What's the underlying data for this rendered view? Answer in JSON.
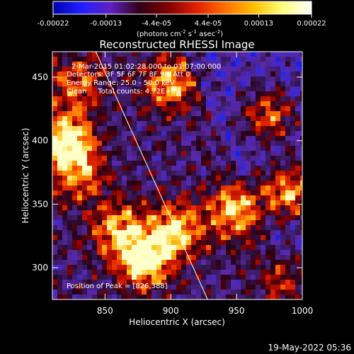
{
  "chart_data": {
    "type": "heatmap",
    "title": "Reconstructed RHESSI Image",
    "xlabel": "Heliocentric X (arcsec)",
    "ylabel": "Heliocentric Y (arcsec)",
    "xlim": [
      810,
      1000
    ],
    "ylim": [
      275,
      470
    ],
    "xticks": [
      "850",
      "900",
      "950",
      "1000"
    ],
    "xtick_values": [
      850,
      900,
      950,
      1000
    ],
    "yticks": [
      "300",
      "350",
      "400",
      "450"
    ],
    "ytick_values": [
      300,
      350,
      400,
      450
    ],
    "colorbar": {
      "min": -0.00022,
      "max": 0.00022,
      "ticks": [
        "-0.00022",
        "-0.00013",
        "-4.4e-05",
        "4.4e-05",
        "0.00013",
        "0.00022"
      ],
      "tick_values": [
        -0.00022,
        -0.00013,
        -4.4e-05,
        4.4e-05,
        0.00013,
        0.00022
      ],
      "unit_label": "(photons cm",
      "unit_exp1": "-2",
      "unit_mid": " s",
      "unit_exp2": "-1",
      "unit_mid2": " asec",
      "unit_exp3": "-2",
      "unit_close": ")",
      "colors": [
        "#0000b0",
        "#2020ff",
        "#6020c0",
        "#300018",
        "#800000",
        "#e02000",
        "#ff7000",
        "#ffc000",
        "#ffff80",
        "#ffffff"
      ]
    },
    "info_lines": [
      "2-Mar-2015 01:02:28.000 to 01:07:00.000",
      "Detectors: 3F 5F 6F 7F 8F 9F, Att 0",
      "Energy Range: 25.0 - 50.0 keV",
      "Clean     Total counts: 4.72E+03"
    ],
    "peak_label": "Position of Peak = [826,388]",
    "peak": [
      826,
      388
    ],
    "limb": [
      [
        843,
        470
      ],
      [
        928,
        275
      ]
    ],
    "bright_regions": [
      {
        "x": 820,
        "y": 400,
        "intensity": 1.0
      },
      {
        "x": 830,
        "y": 372,
        "intensity": 0.6
      },
      {
        "x": 828,
        "y": 445,
        "intensity": 0.6
      },
      {
        "x": 860,
        "y": 330,
        "intensity": 0.7
      },
      {
        "x": 880,
        "y": 305,
        "intensity": 0.95
      },
      {
        "x": 905,
        "y": 330,
        "intensity": 0.8
      },
      {
        "x": 950,
        "y": 345,
        "intensity": 0.8
      },
      {
        "x": 990,
        "y": 360,
        "intensity": 0.9
      },
      {
        "x": 975,
        "y": 420,
        "intensity": 0.7
      },
      {
        "x": 900,
        "y": 445,
        "intensity": 0.75
      },
      {
        "x": 990,
        "y": 290,
        "intensity": 0.5
      }
    ]
  },
  "footer": {
    "timestamp": "19-May-2022 05:36"
  }
}
